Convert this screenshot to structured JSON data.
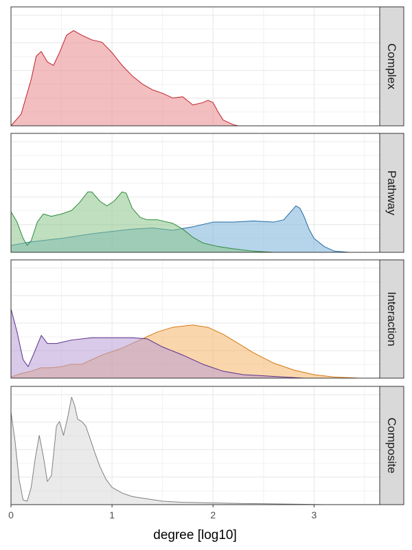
{
  "chart_data": {
    "type": "area",
    "xlabel": "degree [log10]",
    "xlim": [
      0,
      3.65
    ],
    "x_ticks": [
      "0",
      "1",
      "2",
      "3"
    ],
    "x_tick_values": [
      0,
      1,
      2,
      3
    ],
    "facet_position": "right",
    "grid": true,
    "panels": [
      {
        "label": "Complex",
        "ymax": 1.0,
        "series": [
          {
            "color": "#e8888c",
            "stroke": "#c0202a",
            "x": [
              0,
              0.1,
              0.2,
              0.25,
              0.3,
              0.36,
              0.42,
              0.48,
              0.55,
              0.62,
              0.7,
              0.8,
              0.9,
              1.0,
              1.1,
              1.2,
              1.3,
              1.4,
              1.5,
              1.6,
              1.7,
              1.8,
              1.9,
              1.95,
              2.0,
              2.05,
              2.1,
              2.2,
              2.25
            ],
            "y": [
              0,
              0.1,
              0.4,
              0.6,
              0.64,
              0.55,
              0.52,
              0.63,
              0.78,
              0.82,
              0.78,
              0.74,
              0.72,
              0.63,
              0.52,
              0.43,
              0.36,
              0.31,
              0.28,
              0.24,
              0.25,
              0.18,
              0.2,
              0.22,
              0.2,
              0.12,
              0.05,
              0.01,
              0
            ]
          }
        ]
      },
      {
        "label": "Pathway",
        "ymax": 1.0,
        "series": [
          {
            "color": "#7ab0d8",
            "stroke": "#1f6aa5",
            "x": [
              0,
              0.2,
              0.5,
              0.8,
              1.0,
              1.2,
              1.4,
              1.6,
              1.8,
              2.0,
              2.2,
              2.4,
              2.6,
              2.7,
              2.78,
              2.82,
              2.86,
              2.9,
              2.95,
              3.0,
              3.1,
              3.2,
              3.35
            ],
            "y": [
              0.06,
              0.09,
              0.12,
              0.16,
              0.18,
              0.2,
              0.21,
              0.19,
              0.22,
              0.26,
              0.26,
              0.27,
              0.26,
              0.28,
              0.36,
              0.4,
              0.38,
              0.31,
              0.2,
              0.12,
              0.05,
              0.01,
              0
            ]
          },
          {
            "color": "#8bc48b",
            "stroke": "#2e8b3a",
            "x": [
              0,
              0.06,
              0.12,
              0.16,
              0.2,
              0.26,
              0.32,
              0.4,
              0.5,
              0.6,
              0.68,
              0.76,
              0.8,
              0.88,
              0.95,
              1.02,
              1.1,
              1.14,
              1.2,
              1.28,
              1.35,
              1.45,
              1.6,
              1.7,
              1.8,
              1.9,
              2.05,
              2.2,
              2.4,
              2.6
            ],
            "y": [
              0.35,
              0.26,
              0.12,
              0.06,
              0.1,
              0.26,
              0.33,
              0.31,
              0.33,
              0.36,
              0.43,
              0.52,
              0.52,
              0.44,
              0.4,
              0.44,
              0.52,
              0.51,
              0.38,
              0.3,
              0.28,
              0.28,
              0.25,
              0.2,
              0.13,
              0.08,
              0.05,
              0.03,
              0.01,
              0
            ]
          }
        ]
      },
      {
        "label": "Interaction",
        "ymax": 1.0,
        "series": [
          {
            "color": "#f5b467",
            "stroke": "#d4780f",
            "x": [
              0,
              0.1,
              0.2,
              0.3,
              0.4,
              0.5,
              0.6,
              0.7,
              0.8,
              0.9,
              1.0,
              1.1,
              1.2,
              1.3,
              1.45,
              1.6,
              1.8,
              1.95,
              2.1,
              2.25,
              2.4,
              2.6,
              2.8,
              3.0,
              3.2,
              3.45
            ],
            "y": [
              0.01,
              0.04,
              0.06,
              0.09,
              0.09,
              0.1,
              0.12,
              0.12,
              0.16,
              0.2,
              0.23,
              0.26,
              0.3,
              0.34,
              0.4,
              0.44,
              0.46,
              0.44,
              0.38,
              0.3,
              0.22,
              0.13,
              0.07,
              0.03,
              0.01,
              0
            ]
          },
          {
            "color": "#b89ed6",
            "stroke": "#5a2d8c",
            "x": [
              0,
              0.06,
              0.12,
              0.17,
              0.22,
              0.3,
              0.36,
              0.45,
              0.6,
              0.8,
              1.0,
              1.2,
              1.35,
              1.5,
              1.7,
              1.9,
              2.1,
              2.3,
              2.5,
              2.7,
              2.9
            ],
            "y": [
              0.6,
              0.4,
              0.16,
              0.1,
              0.2,
              0.37,
              0.3,
              0.3,
              0.33,
              0.35,
              0.35,
              0.35,
              0.34,
              0.27,
              0.2,
              0.12,
              0.06,
              0.03,
              0.02,
              0.01,
              0
            ]
          }
        ]
      },
      {
        "label": "Composite",
        "ymax": 1.0,
        "series": [
          {
            "color": "#d9d9d9",
            "stroke": "#7f7f7f",
            "x": [
              0,
              0.04,
              0.08,
              0.12,
              0.16,
              0.2,
              0.24,
              0.28,
              0.32,
              0.36,
              0.4,
              0.45,
              0.48,
              0.52,
              0.56,
              0.6,
              0.63,
              0.66,
              0.7,
              0.74,
              0.78,
              0.83,
              0.88,
              0.94,
              1.0,
              1.1,
              1.2,
              1.35,
              1.5,
              1.7,
              2.0,
              2.3,
              2.6,
              2.9,
              3.1
            ],
            "y": [
              0.8,
              0.55,
              0.22,
              0.04,
              0.03,
              0.15,
              0.4,
              0.6,
              0.42,
              0.2,
              0.25,
              0.68,
              0.72,
              0.6,
              0.75,
              0.93,
              0.86,
              0.74,
              0.72,
              0.68,
              0.58,
              0.45,
              0.33,
              0.22,
              0.15,
              0.1,
              0.07,
              0.05,
              0.03,
              0.02,
              0.015,
              0.01,
              0.007,
              0.003,
              0
            ]
          }
        ]
      }
    ]
  }
}
